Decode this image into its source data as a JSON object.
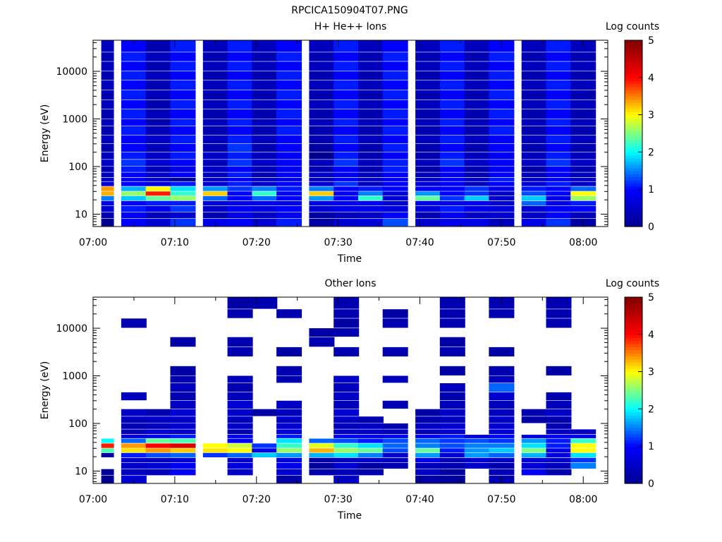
{
  "figure_title": "RPCICA150904T07.PNG",
  "colors": {
    "background": "#ffffff",
    "axis": "#000000",
    "colormap": [
      "#00008f",
      "#0000ff",
      "#00ffff",
      "#ffff00",
      "#ff0000",
      "#800000"
    ]
  },
  "chart_data": [
    {
      "type": "heatmap",
      "title": "H+ He++ Ions",
      "xlabel": "Time",
      "ylabel": "Energy (eV)",
      "colorbar_label": "Log counts",
      "colorbar_ticks": [
        "0",
        "1",
        "2",
        "3",
        "4",
        "5"
      ],
      "clim": [
        0,
        5
      ],
      "y_scale": "log",
      "ylim": [
        5.5,
        45000
      ],
      "xlim": [
        "07:00",
        "08:03"
      ],
      "x_ticks": [
        "07:00",
        "07:10",
        "07:20",
        "07:30",
        "07:40",
        "07:50",
        "08:00"
      ],
      "y_ticks": [
        "10",
        "100",
        "1000",
        "10000"
      ],
      "time_columns": [
        "07:01",
        "07:05",
        "07:08",
        "07:11",
        "07:15",
        "07:18",
        "07:21",
        "07:24",
        "07:28",
        "07:31",
        "07:34",
        "07:37",
        "07:41",
        "07:44",
        "07:47",
        "07:50",
        "07:54",
        "07:57",
        "08:00"
      ],
      "energy_edges_eV": [
        5.5,
        8,
        11,
        15,
        19,
        24,
        30,
        38,
        48,
        58,
        75,
        100,
        140,
        200,
        300,
        450,
        700,
        1000,
        1600,
        2500,
        4000,
        6500,
        10000,
        16000,
        25000,
        45000
      ],
      "counts_log": [
        [
          0,
          1,
          0.6,
          1.2,
          0.8,
          1.0,
          0.6,
          1.1,
          0.2,
          0.6,
          0.7,
          1.3,
          0.6,
          0.8,
          0.8,
          0.4,
          0.8,
          1.2,
          0.2
        ],
        [
          0.3,
          0.9,
          0.4,
          0.6,
          0.3,
          0.8,
          0.5,
          0.9,
          0.2,
          0.4,
          0.5,
          1.0,
          0.3,
          0.9,
          0.5,
          0.6,
          0.5,
          1.0,
          0.4
        ],
        [
          0.6,
          1.1,
          0.8,
          1.2,
          0.5,
          0.9,
          0.7,
          1.0,
          0.6,
          0.8,
          0.8,
          0.7,
          0.7,
          1.1,
          0.8,
          0.7,
          0.6,
          0.9,
          0.9
        ],
        [
          0.8,
          1.0,
          1.1,
          1.1,
          0.7,
          0.8,
          0.9,
          0.8,
          0.8,
          0.9,
          0.9,
          0.6,
          0.8,
          0.8,
          0.9,
          0.6,
          1.4,
          0.8,
          1.1
        ],
        [
          1.5,
          1.8,
          2.4,
          2.6,
          1.4,
          1.0,
          1.4,
          1.0,
          1.6,
          1.0,
          2.2,
          0.6,
          2.4,
          1.2,
          1.8,
          0.5,
          1.8,
          0.8,
          2.6
        ],
        [
          3.3,
          2.6,
          3.9,
          2.2,
          3.2,
          1.0,
          2.2,
          0.9,
          3.2,
          0.9,
          1.5,
          0.7,
          1.6,
          1.0,
          1.2,
          0.5,
          1.3,
          1.0,
          3.0
        ],
        [
          3.4,
          1.7,
          3.0,
          1.9,
          1.6,
          1.2,
          1.5,
          1.1,
          1.5,
          1.0,
          1.1,
          0.9,
          1.0,
          1.0,
          1.2,
          0.8,
          1.1,
          1.0,
          1.4
        ],
        [
          0.6,
          1.0,
          0.7,
          1.1,
          0.6,
          1.1,
          0.5,
          1.0,
          0.6,
          1.2,
          0.4,
          1.0,
          0.6,
          0.9,
          0.4,
          1.0,
          0.6,
          1.1,
          0.5
        ],
        [
          0.5,
          0.9,
          0.6,
          0,
          0.5,
          1.0,
          0.5,
          0.8,
          0.4,
          1.0,
          0.5,
          0.9,
          0.5,
          1.0,
          0.5,
          1.1,
          0.5,
          0.9,
          0.5
        ],
        [
          0.4,
          1.0,
          0.5,
          1.0,
          0.4,
          1.1,
          0.3,
          1.0,
          0.5,
          0.9,
          0.4,
          1.0,
          0.4,
          0.9,
          0.3,
          1.0,
          0.4,
          0.9,
          0.4
        ],
        [
          0.3,
          1.1,
          0.4,
          0.8,
          0.5,
          1.0,
          0.4,
          0.9,
          0.3,
          1.0,
          0.3,
          1.1,
          0.2,
          1.0,
          0.3,
          0.9,
          0.2,
          1.0,
          0.3
        ],
        [
          0.5,
          1.2,
          0.6,
          1.0,
          0.4,
          1.2,
          0.5,
          1.0,
          0.4,
          1.2,
          0.4,
          1.1,
          0.4,
          1.2,
          0.5,
          1.0,
          0.5,
          1.2,
          0.5
        ],
        [
          0.4,
          1.1,
          0.5,
          1.1,
          0.5,
          1.1,
          0.4,
          0.9,
          0,
          1.1,
          0.3,
          1.0,
          0.3,
          1.1,
          0.4,
          0.9,
          0.4,
          1.1,
          0.4
        ],
        [
          0.3,
          1.0,
          0.4,
          1.0,
          0.3,
          1.2,
          0.3,
          1.0,
          0.2,
          1.0,
          0.3,
          1.1,
          0.3,
          1.0,
          0.3,
          1.0,
          0.3,
          1.0,
          0.3
        ],
        [
          0.4,
          1.0,
          0.5,
          1.1,
          0.4,
          1.1,
          0.4,
          1.0,
          0.3,
          1.1,
          0.4,
          1.0,
          0.4,
          1.1,
          0.4,
          1.0,
          0.4,
          1.1,
          0.4
        ],
        [
          0.3,
          1.1,
          0.4,
          1.0,
          0.3,
          1.0,
          0.3,
          1.1,
          0.3,
          1.0,
          0.3,
          1.1,
          0.3,
          1.0,
          0.3,
          1.1,
          0.3,
          1.0,
          0.3
        ],
        [
          0.4,
          1.0,
          0.3,
          1.1,
          0.4,
          1.1,
          0.4,
          1.0,
          0.4,
          1.1,
          0.4,
          1.0,
          0.4,
          1.1,
          0.4,
          1.0,
          0.4,
          1.1,
          0.4
        ],
        [
          0.3,
          1.1,
          0.4,
          1.0,
          0.3,
          1.0,
          0.3,
          1.1,
          0.3,
          1.0,
          0.3,
          1.1,
          0.3,
          1.0,
          0.3,
          1.1,
          0.3,
          1.0,
          0.3
        ],
        [
          0.4,
          1.0,
          0.3,
          1.1,
          0.4,
          1.1,
          0.4,
          1.0,
          0.4,
          1.1,
          0.4,
          1.0,
          0.4,
          1.1,
          0.4,
          1.0,
          0.4,
          1.1,
          0.4
        ],
        [
          0.3,
          1.1,
          0.4,
          1.0,
          0.3,
          1.0,
          0.3,
          1.1,
          0.3,
          1.0,
          0.3,
          1.1,
          0.3,
          1.0,
          0.3,
          1.1,
          0.3,
          1.0,
          0.3
        ],
        [
          0.4,
          1.0,
          0.3,
          1.1,
          0.4,
          1.1,
          0.4,
          1.0,
          0.4,
          1.1,
          0.4,
          1.0,
          0.4,
          1.1,
          0.4,
          1.0,
          0.4,
          1.1,
          0.4
        ],
        [
          0.3,
          1.1,
          0.4,
          1.0,
          0.3,
          1.0,
          0.3,
          1.1,
          0.3,
          1.0,
          0.3,
          1.1,
          0.3,
          1.0,
          0.3,
          1.1,
          0.3,
          1.0,
          0.3
        ],
        [
          0.4,
          1.0,
          0.3,
          1.1,
          0.4,
          1.1,
          0.4,
          1.0,
          0.4,
          1.1,
          0.4,
          1.0,
          0.4,
          1.1,
          0.4,
          1.0,
          0.4,
          1.1,
          0.4
        ],
        [
          0.3,
          1.1,
          0.4,
          1.0,
          0.3,
          1.0,
          0.3,
          1.1,
          0.3,
          1.0,
          0.3,
          1.1,
          0.3,
          1.0,
          0.3,
          1.1,
          0.3,
          1.0,
          0.3
        ],
        [
          0.4,
          1.0,
          0.3,
          1.1,
          0.4,
          1.1,
          0.4,
          1.0,
          0.4,
          1.1,
          0.4,
          1.0,
          0.4,
          1.1,
          0.4,
          1.0,
          0.4,
          1.1,
          0.4
        ]
      ]
    },
    {
      "type": "heatmap",
      "title": "Other Ions",
      "xlabel": "Time",
      "ylabel": "Energy (eV)",
      "colorbar_label": "Log counts",
      "colorbar_ticks": [
        "0",
        "1",
        "2",
        "3",
        "4",
        "5"
      ],
      "clim": [
        0,
        5
      ],
      "y_scale": "log",
      "ylim": [
        5.5,
        45000
      ],
      "xlim": [
        "07:00",
        "08:03"
      ],
      "x_ticks": [
        "07:00",
        "07:10",
        "07:20",
        "07:30",
        "07:40",
        "07:50",
        "08:00"
      ],
      "y_ticks": [
        "10",
        "100",
        "1000",
        "10000"
      ],
      "time_columns": [
        "07:01",
        "07:05",
        "07:08",
        "07:11",
        "07:15",
        "07:18",
        "07:21",
        "07:24",
        "07:28",
        "07:31",
        "07:34",
        "07:37",
        "07:41",
        "07:44",
        "07:47",
        "07:50",
        "07:54",
        "07:57",
        "08:00"
      ],
      "energy_edges_eV": [
        5.5,
        8,
        11,
        15,
        19,
        24,
        30,
        38,
        48,
        58,
        75,
        100,
        140,
        200,
        300,
        450,
        700,
        1000,
        1600,
        2500,
        4000,
        6500,
        10000,
        16000,
        25000,
        45000
      ],
      "counts_log": [
        [
          0,
          0.6,
          null,
          null,
          null,
          null,
          null,
          0.2,
          null,
          0.5,
          null,
          null,
          0.2,
          0.1,
          null,
          0.3,
          null,
          null,
          null
        ],
        [
          0.1,
          0.5,
          0.4,
          0.9,
          null,
          0.5,
          null,
          0.6,
          0.3,
          0.4,
          0.3,
          null,
          0.5,
          0.2,
          null,
          0.4,
          0.9,
          0.3,
          null
        ],
        [
          null,
          0.5,
          0.6,
          0.9,
          null,
          0.7,
          null,
          0.8,
          0.1,
          0.6,
          0.2,
          0.3,
          0.4,
          0.3,
          0.5,
          0.3,
          0.6,
          0.4,
          1.5
        ],
        [
          null,
          0.6,
          0.5,
          0.7,
          null,
          0.6,
          null,
          0.8,
          0.3,
          0.5,
          0.6,
          0.5,
          0.9,
          0.4,
          0.7,
          0.5,
          0.7,
          0.6,
          1.2
        ],
        [
          0.2,
          1.1,
          1.3,
          1.4,
          1.2,
          1.4,
          1.8,
          1.6,
          1.7,
          1.9,
          1.5,
          0.5,
          1.6,
          0.6,
          1.6,
          1.4,
          1.7,
          0.7,
          1.9
        ],
        [
          2.3,
          3.1,
          3.4,
          3.2,
          3.1,
          3.0,
          0.8,
          2.6,
          3.3,
          2.6,
          2.4,
          1.3,
          2.4,
          1.1,
          1.6,
          1.8,
          2.5,
          0.8,
          3.0
        ],
        [
          3.9,
          3.4,
          4.0,
          4.3,
          3.0,
          2.8,
          1.2,
          2.2,
          2.9,
          2.2,
          1.9,
          1.4,
          1.5,
          1.3,
          1.5,
          1.5,
          1.9,
          1.1,
          3.0
        ],
        [
          2.0,
          1.4,
          2.4,
          2.3,
          null,
          0.9,
          null,
          1.9,
          1.4,
          1.3,
          1.1,
          1.3,
          1.4,
          1.2,
          1.3,
          1.2,
          1.6,
          1.1,
          2.2
        ],
        [
          null,
          0.7,
          0.9,
          1.1,
          null,
          0.8,
          null,
          1.1,
          null,
          0.9,
          0.8,
          0.9,
          0.9,
          1.1,
          0.6,
          1.0,
          0.7,
          0.9,
          0.9
        ],
        [
          null,
          0.4,
          0.6,
          0.5,
          null,
          0.3,
          null,
          0.7,
          null,
          0.5,
          0.5,
          0.4,
          0.4,
          0.6,
          null,
          0.7,
          null,
          0.5,
          0.5
        ],
        [
          null,
          0.3,
          0.4,
          0.6,
          null,
          0.5,
          null,
          0.6,
          null,
          0.4,
          0.5,
          0.3,
          0.5,
          0.6,
          null,
          0.6,
          null,
          0.3,
          null
        ],
        [
          null,
          0.4,
          0.5,
          0.5,
          null,
          0.4,
          null,
          0.5,
          null,
          0.5,
          0.3,
          null,
          0.3,
          0.4,
          null,
          0.5,
          0.2,
          0.3,
          null
        ],
        [
          null,
          0.5,
          0.3,
          0.6,
          null,
          0.5,
          0.2,
          0.4,
          null,
          0.6,
          null,
          null,
          0.2,
          0.5,
          null,
          0.4,
          0.3,
          0.5,
          null
        ],
        [
          null,
          null,
          null,
          0.5,
          null,
          0.6,
          null,
          0.5,
          null,
          0.4,
          null,
          0.3,
          null,
          0.4,
          null,
          0.4,
          null,
          0.4,
          null
        ],
        [
          null,
          0.4,
          null,
          0.3,
          null,
          0.4,
          null,
          null,
          null,
          0.5,
          null,
          null,
          null,
          0.3,
          null,
          0.6,
          null,
          0.3,
          null
        ],
        [
          null,
          null,
          null,
          0.4,
          null,
          0.3,
          null,
          null,
          null,
          0.4,
          null,
          null,
          null,
          0.4,
          null,
          1.4,
          null,
          null,
          null
        ],
        [
          null,
          null,
          null,
          0.3,
          null,
          0.4,
          null,
          0.3,
          null,
          0.5,
          null,
          0.4,
          null,
          null,
          null,
          0.4,
          null,
          null,
          null
        ],
        [
          null,
          null,
          null,
          0.2,
          null,
          null,
          null,
          0.3,
          null,
          null,
          null,
          null,
          null,
          0.2,
          null,
          0.3,
          null,
          0.2,
          null
        ],
        [
          null,
          null,
          null,
          null,
          null,
          null,
          null,
          null,
          null,
          null,
          null,
          null,
          null,
          null,
          null,
          null,
          null,
          null,
          null
        ],
        [
          null,
          null,
          null,
          null,
          null,
          0.3,
          null,
          0.2,
          null,
          0.3,
          null,
          0.3,
          null,
          0.3,
          null,
          0.2,
          null,
          null,
          null
        ],
        [
          null,
          null,
          null,
          0.2,
          null,
          0.3,
          null,
          null,
          0.3,
          null,
          null,
          null,
          null,
          0.2,
          null,
          null,
          null,
          null,
          null
        ],
        [
          null,
          null,
          null,
          null,
          null,
          null,
          null,
          null,
          0.2,
          0.3,
          null,
          null,
          null,
          null,
          null,
          null,
          null,
          null,
          null
        ],
        [
          null,
          0.3,
          null,
          null,
          null,
          null,
          null,
          null,
          null,
          0.2,
          null,
          0.3,
          null,
          0.3,
          null,
          null,
          null,
          0.3,
          null
        ],
        [
          null,
          null,
          null,
          null,
          null,
          0.3,
          null,
          0.3,
          null,
          0.3,
          null,
          0.2,
          null,
          0.3,
          null,
          0.3,
          null,
          0.3,
          null
        ],
        [
          null,
          null,
          null,
          null,
          null,
          0.2,
          0.3,
          null,
          null,
          0.3,
          null,
          null,
          null,
          0.3,
          null,
          0.3,
          null,
          0.3,
          null
        ]
      ]
    }
  ]
}
